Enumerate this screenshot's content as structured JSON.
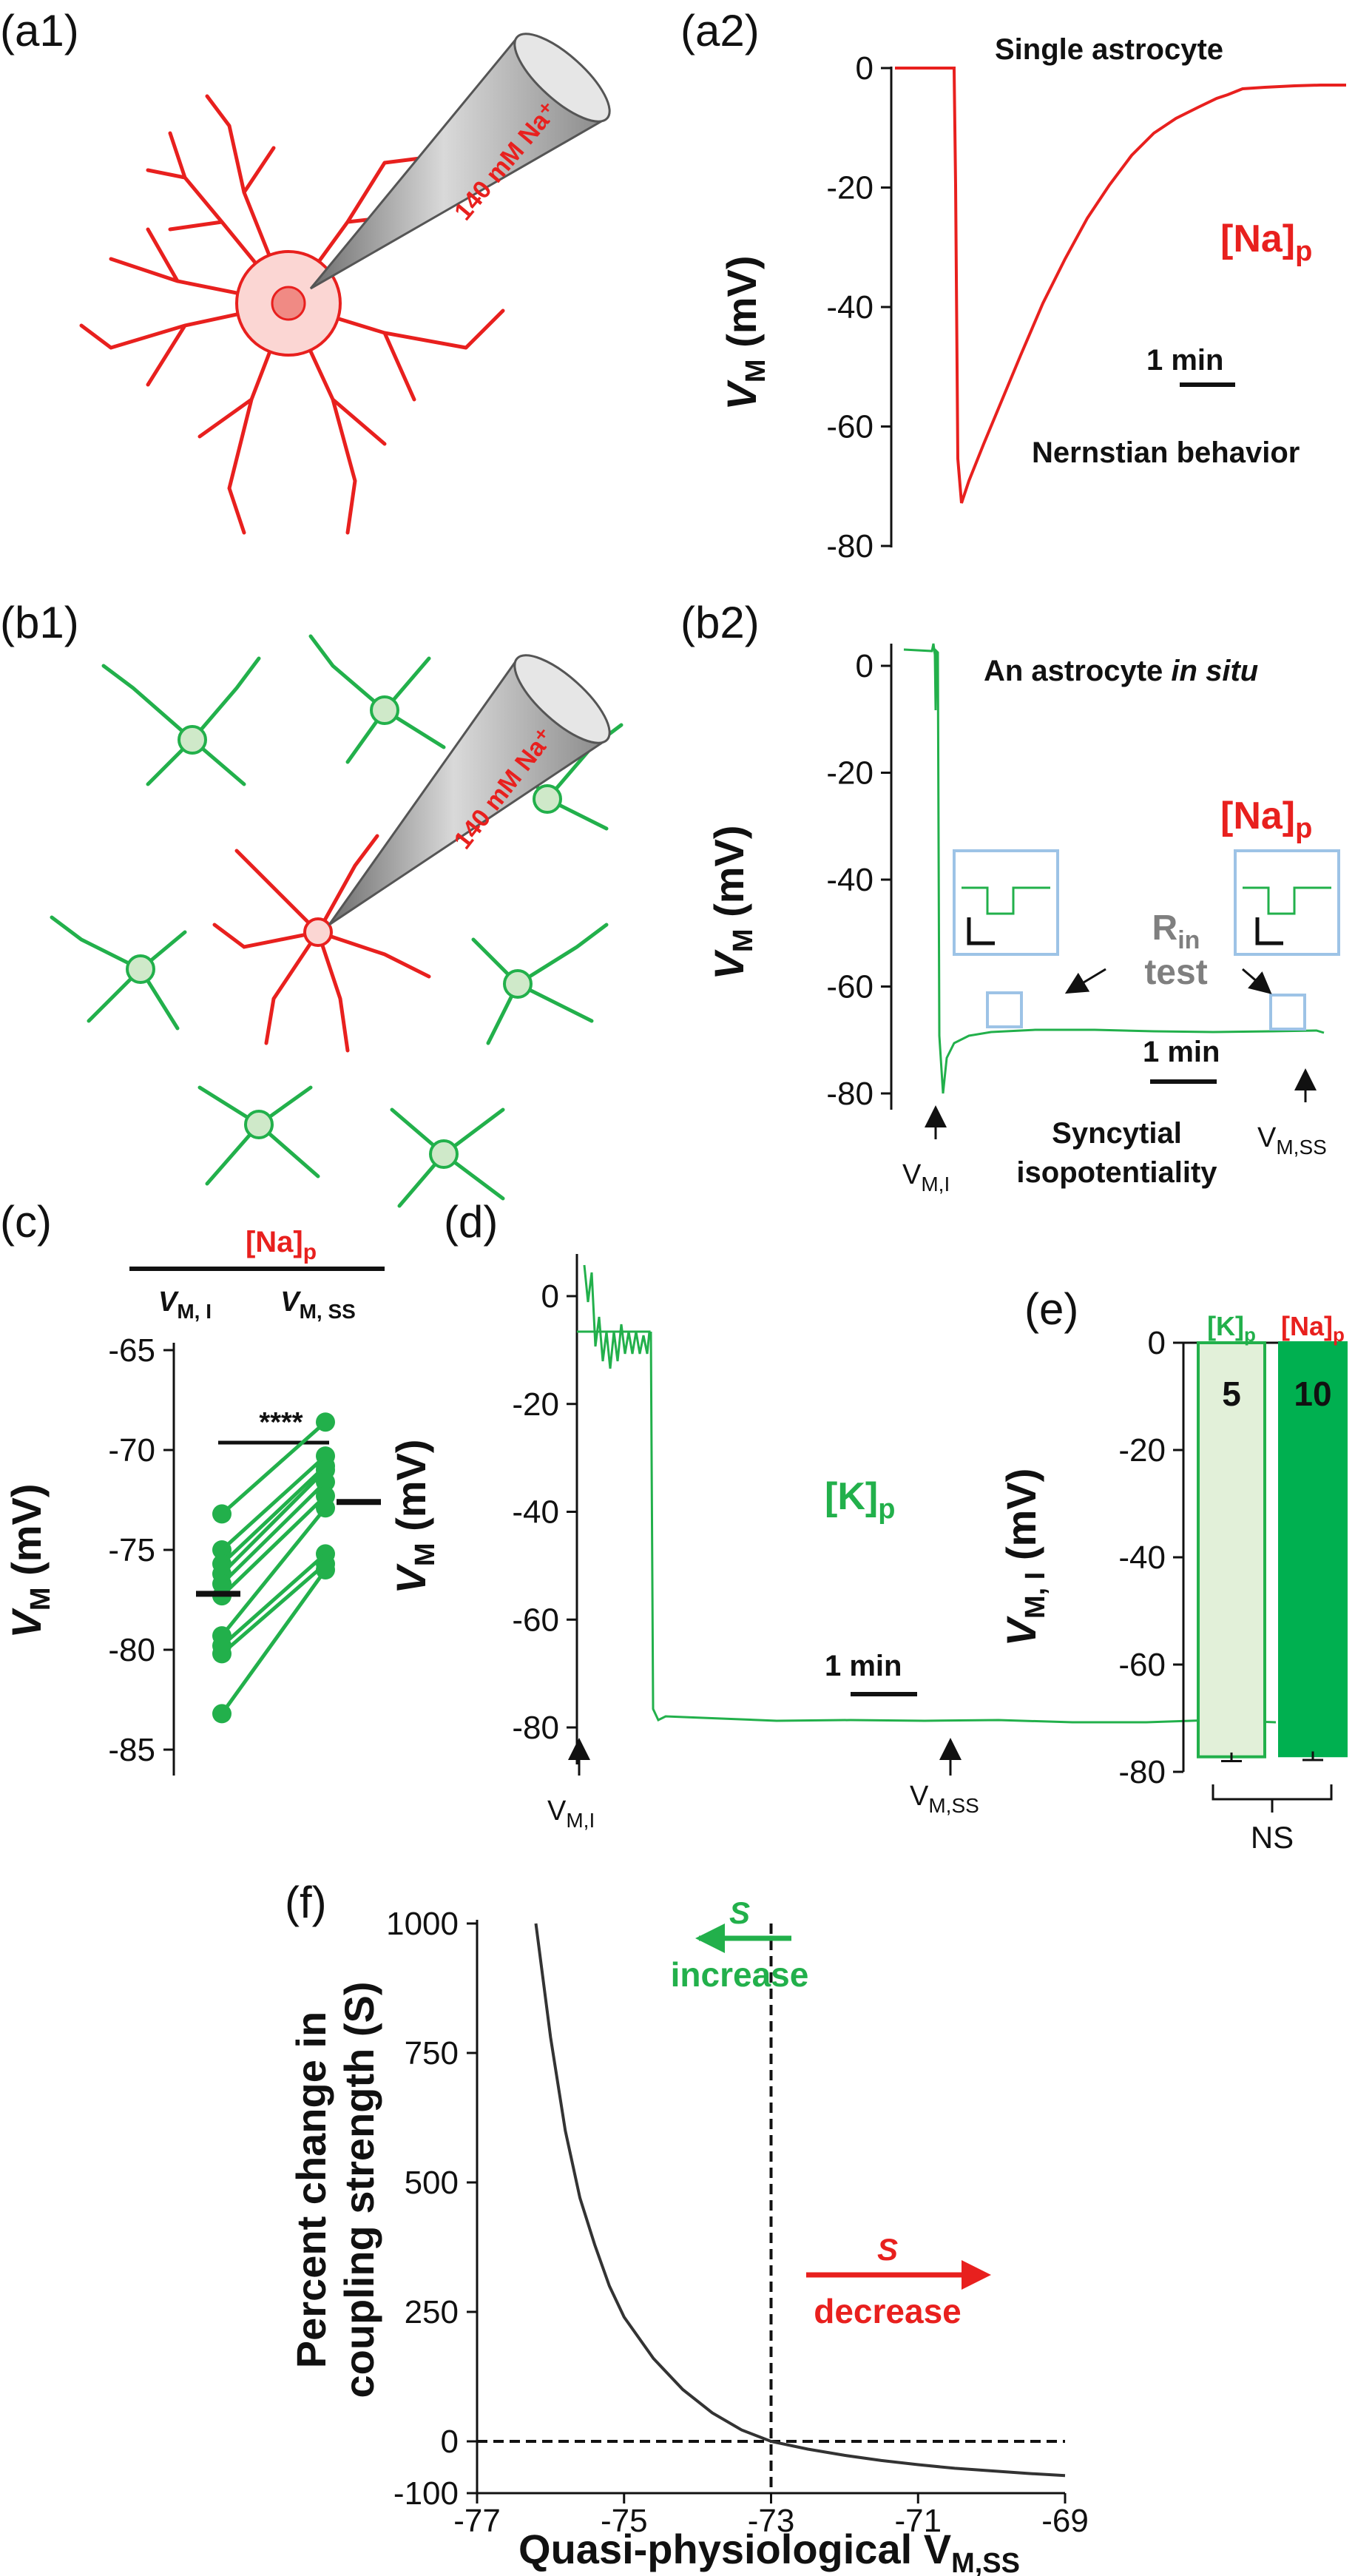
{
  "panels": {
    "a1": {
      "label": "(a1)",
      "pipette": "140 mM Na⁺"
    },
    "a2": {
      "label": "(a2)",
      "title": "Single astrocyte",
      "ylabel_main": "V",
      "ylabel_sub": "M",
      "ylabel_unit": " (mV)",
      "yticks": [
        "0",
        "-20",
        "-40",
        "-60",
        "-80"
      ],
      "condition_main": "[Na]",
      "condition_sub": "p",
      "scalebar": "1 min",
      "note": "Nernstian  behavior"
    },
    "b1": {
      "label": "(b1)",
      "pipette": "140 mM Na⁺"
    },
    "b2": {
      "label": "(b2)",
      "title_prefix": "An astrocyte ",
      "title_italic": "in situ",
      "ylabel_main": "V",
      "ylabel_sub": "M",
      "ylabel_unit": " (mV)",
      "yticks": [
        "0",
        "-20",
        "-40",
        "-60",
        "-80"
      ],
      "condition_main": "[Na]",
      "condition_sub": "p",
      "rin_main": "R",
      "rin_sub": "in",
      "rin_test": "test",
      "scalebar": "1 min",
      "note_line1": "Syncytial",
      "note_line2": "isopotentiality",
      "vmi_main": "V",
      "vmi_sub": "M,I",
      "vmss_main": "V",
      "vmss_sub": "M,SS"
    },
    "c": {
      "label": "(c)",
      "header_main": "[Na]",
      "header_sub": "p",
      "col1_main": "V",
      "col1_sub": "M, I",
      "col2_main": "V",
      "col2_sub": "M, SS",
      "ylabel_main": "V",
      "ylabel_sub": "M",
      "ylabel_unit": " (mV)",
      "yticks": [
        "-65",
        "-70",
        "-75",
        "-80",
        "-85"
      ],
      "significance": "****"
    },
    "d": {
      "label": "(d)",
      "ylabel_main": "V",
      "ylabel_sub": "M",
      "ylabel_unit": " (mV)",
      "yticks": [
        "0",
        "-20",
        "-40",
        "-60",
        "-80"
      ],
      "condition_main": "[K]",
      "condition_sub": "p",
      "scalebar": "1 min",
      "vmi_main": "V",
      "vmi_sub": "M,I",
      "vmss_main": "V",
      "vmss_sub": "M,SS"
    },
    "e": {
      "label": "(e)",
      "ylabel_main": "V",
      "ylabel_sub": "M, I",
      "ylabel_unit": " (mV)",
      "yticks": [
        "0",
        "-20",
        "-40",
        "-60",
        "-80"
      ],
      "cat1_main": "[K]",
      "cat1_sub": "p",
      "cat2_main": "[Na]",
      "cat2_sub": "p",
      "n1": "5",
      "n2": "10",
      "ns": "NS"
    },
    "f": {
      "label": "(f)",
      "ylabel_line1": "Percent change in",
      "ylabel_line2": "coupling strength (S)",
      "xlabel": "Quasi-physiological V",
      "xlabel_sub": "M,SS",
      "yticks": [
        "1000",
        "750",
        "500",
        "250",
        "0",
        "-100"
      ],
      "xticks": [
        "-77",
        "-75",
        "-73",
        "-71",
        "-69"
      ],
      "arrow_left_s": "S",
      "arrow_left_text": "increase",
      "arrow_right_s": "S",
      "arrow_right_text": "decrease"
    }
  },
  "colors": {
    "red": "#e8201e",
    "green": "#22b04b",
    "grey": "#7f7f7f",
    "box": "#9dc3e6"
  },
  "chart_data": [
    {
      "panel": "c",
      "type": "scatter",
      "categories": [
        "VM,I",
        "VM,SS"
      ],
      "ylim": [
        -85,
        -65
      ],
      "pairs": [
        [
          -73.2,
          -68.6
        ],
        [
          -75.0,
          -70.3
        ],
        [
          -75.7,
          -70.8
        ],
        [
          -76.2,
          -71.0
        ],
        [
          -76.7,
          -71.6
        ],
        [
          -77.3,
          -72.3
        ],
        [
          -79.3,
          -72.9
        ],
        [
          -79.8,
          -75.2
        ],
        [
          -80.2,
          -75.7
        ],
        [
          -83.2,
          -76.0
        ]
      ],
      "means": [
        -77.2,
        -72.6
      ]
    },
    {
      "panel": "e",
      "type": "bar",
      "categories": [
        "[K]p",
        "[Na]p"
      ],
      "values": [
        -77.2,
        -77.0
      ],
      "errors": [
        0.8,
        0.8
      ],
      "n": [
        5,
        10
      ],
      "ylim": [
        -80,
        0
      ]
    },
    {
      "panel": "f",
      "type": "line",
      "xlim": [
        -77,
        -69
      ],
      "ylim": [
        -100,
        1000
      ],
      "x": [
        -76.2,
        -76.0,
        -75.8,
        -75.6,
        -75.4,
        -75.2,
        -75.0,
        -74.6,
        -74.2,
        -73.8,
        -73.4,
        -73.0,
        -72.5,
        -72.0,
        -71.5,
        -71.0,
        -70.5,
        -70.0,
        -69.5,
        -69.0
      ],
      "y": [
        1000,
        780,
        600,
        470,
        380,
        300,
        240,
        160,
        100,
        55,
        22,
        0,
        -15,
        -27,
        -37,
        -45,
        -52,
        -57,
        -62,
        -66
      ],
      "vline_x": -73,
      "hline_y": 0
    }
  ]
}
